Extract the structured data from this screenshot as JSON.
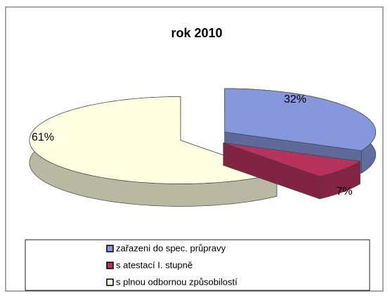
{
  "chart_data": {
    "type": "pie",
    "title": "rok 2010",
    "categories": [
      "zařazeni do spec. průpravy",
      "s atestací I. stupně",
      "s plnou odbornou způsobilostí"
    ],
    "values": [
      32,
      7,
      61
    ],
    "value_labels": [
      "32%",
      "7%",
      "61%"
    ],
    "colors": [
      "#8797dc",
      "#b8325e",
      "#ffffe2"
    ]
  }
}
